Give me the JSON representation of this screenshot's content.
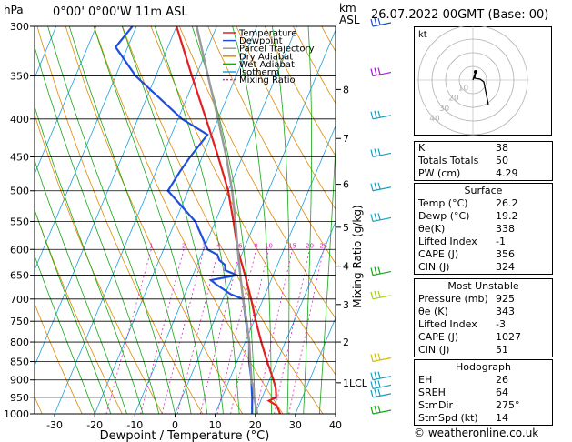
{
  "header": {
    "location": "0°00' 0°00'W 11m ASL",
    "datetime": "26.07.2022 00GMT (Base: 00)",
    "y_unit": "hPa",
    "km_label": "km",
    "asl_label": "ASL"
  },
  "chart_data": {
    "type": "line",
    "title": "",
    "xlabel": "Dewpoint / Temperature (°C)",
    "ylabel": "hPa",
    "right_axis_label": "Mixing Ratio (g/kg)",
    "xlim": [
      -35,
      40
    ],
    "ylim": [
      1000,
      300
    ],
    "log_pressure": true,
    "skew_per_log_pressure": 148,
    "x_ticks": [
      "-30",
      "-20",
      "-10",
      "0",
      "10",
      "20",
      "30",
      "40"
    ],
    "x_tick_values": [
      -30,
      -20,
      -10,
      0,
      10,
      20,
      30,
      40
    ],
    "pressure_levels": [
      300,
      350,
      400,
      450,
      500,
      550,
      600,
      650,
      700,
      750,
      800,
      850,
      900,
      950,
      1000
    ],
    "pressure_labels": [
      "300",
      "350",
      "400",
      "450",
      "500",
      "550",
      "600",
      "650",
      "700",
      "750",
      "800",
      "850",
      "900",
      "950",
      "1000"
    ],
    "km_ticks": [
      {
        "label": "8",
        "p": 365
      },
      {
        "label": "7",
        "p": 425
      },
      {
        "label": "6",
        "p": 490
      },
      {
        "label": "5",
        "p": 560
      },
      {
        "label": "4",
        "p": 632
      },
      {
        "label": "3",
        "p": 712
      },
      {
        "label": "2",
        "p": 800
      },
      {
        "label": "1LCL",
        "p": 908
      }
    ],
    "mixing_ratio_labels": [
      "1",
      "2",
      "3",
      "4",
      "6",
      "8",
      "10",
      "15",
      "20",
      "25"
    ],
    "mixing_ratio_values": [
      1,
      2,
      3,
      4,
      6,
      8,
      10,
      15,
      20,
      25
    ],
    "legend": {
      "placement": "top-left",
      "entries": [
        {
          "name": "Temperature",
          "color": "#e32020",
          "dash": false
        },
        {
          "name": "Dewpoint",
          "color": "#1f4fe0",
          "dash": false
        },
        {
          "name": "Parcel Trajectory",
          "color": "#9a9a9a",
          "dash": false
        },
        {
          "name": "Dry Adiabat",
          "color": "#e08a00",
          "dash": false
        },
        {
          "name": "Wet Adiabat",
          "color": "#16a816",
          "dash": false
        },
        {
          "name": "Isotherm",
          "color": "#1aa0e0",
          "dash": false
        },
        {
          "name": "Mixing Ratio",
          "color": "#e020c0",
          "dash": true
        }
      ]
    },
    "series": [
      {
        "name": "Temperature",
        "color": "#e32020",
        "points": [
          [
            1000,
            26.2
          ],
          [
            975,
            24.5
          ],
          [
            960,
            22
          ],
          [
            950,
            23.5
          ],
          [
            925,
            22.5
          ],
          [
            900,
            21
          ],
          [
            850,
            17.5
          ],
          [
            800,
            14
          ],
          [
            750,
            10.5
          ],
          [
            700,
            7
          ],
          [
            650,
            3
          ],
          [
            600,
            -1.5
          ],
          [
            550,
            -5.5
          ],
          [
            500,
            -10
          ],
          [
            450,
            -16
          ],
          [
            400,
            -23
          ],
          [
            350,
            -31
          ],
          [
            300,
            -40
          ]
        ]
      },
      {
        "name": "Dewpoint",
        "color": "#1f4fe0",
        "points": [
          [
            1000,
            19.2
          ],
          [
            950,
            17.5
          ],
          [
            925,
            16.5
          ],
          [
            900,
            15.5
          ],
          [
            850,
            13
          ],
          [
            800,
            11
          ],
          [
            750,
            8
          ],
          [
            700,
            5
          ],
          [
            690,
            1.5
          ],
          [
            670,
            -3
          ],
          [
            660,
            -5
          ],
          [
            650,
            1
          ],
          [
            640,
            -2.5
          ],
          [
            630,
            -3
          ],
          [
            620,
            -5
          ],
          [
            610,
            -6
          ],
          [
            600,
            -9
          ],
          [
            550,
            -15
          ],
          [
            500,
            -25
          ],
          [
            470,
            -24
          ],
          [
            450,
            -23
          ],
          [
            420,
            -21
          ],
          [
            400,
            -29
          ],
          [
            350,
            -45
          ],
          [
            320,
            -53
          ],
          [
            300,
            -51
          ]
        ]
      },
      {
        "name": "Parcel Trajectory",
        "color": "#9a9a9a",
        "points": [
          [
            1000,
            20.5
          ],
          [
            950,
            18
          ],
          [
            925,
            17
          ],
          [
            900,
            15.5
          ],
          [
            850,
            13.3
          ],
          [
            800,
            11
          ],
          [
            750,
            8.2
          ],
          [
            700,
            5
          ],
          [
            650,
            1.8
          ],
          [
            600,
            -1.5
          ],
          [
            550,
            -5
          ],
          [
            500,
            -9
          ],
          [
            450,
            -14
          ],
          [
            400,
            -20
          ],
          [
            350,
            -27
          ],
          [
            300,
            -35
          ]
        ]
      }
    ],
    "wind_barbs": [
      {
        "p": 1000,
        "color": "#16a816"
      },
      {
        "p": 950,
        "color": "#16a0c0"
      },
      {
        "p": 925,
        "color": "#16a0c0"
      },
      {
        "p": 900,
        "color": "#16a0c0"
      },
      {
        "p": 850,
        "color": "#d0c000"
      },
      {
        "p": 700,
        "color": "#a8d020"
      },
      {
        "p": 650,
        "color": "#16a816"
      },
      {
        "p": 550,
        "color": "#16a0c0"
      },
      {
        "p": 500,
        "color": "#16a0c0"
      },
      {
        "p": 450,
        "color": "#16a0c0"
      },
      {
        "p": 400,
        "color": "#16a0c0"
      },
      {
        "p": 350,
        "color": "#a020d0"
      },
      {
        "p": 300,
        "color": "#2050d0"
      }
    ]
  },
  "hodograph": {
    "unit": "kt",
    "ring_labels": [
      "10",
      "20",
      "30",
      "40"
    ]
  },
  "indices": {
    "top": [
      {
        "label": "K",
        "value": "38"
      },
      {
        "label": "Totals Totals",
        "value": "50"
      },
      {
        "label": "PW (cm)",
        "value": "4.29"
      }
    ],
    "surface": {
      "title": "Surface",
      "rows": [
        {
          "label": "Temp (°C)",
          "value": "26.2"
        },
        {
          "label": "Dewp (°C)",
          "value": "19.2"
        },
        {
          "label": "θe(K)",
          "value": "338"
        },
        {
          "label": "Lifted Index",
          "value": "-1"
        },
        {
          "label": "CAPE (J)",
          "value": "356"
        },
        {
          "label": "CIN (J)",
          "value": "324"
        }
      ]
    },
    "most_unstable": {
      "title": "Most Unstable",
      "rows": [
        {
          "label": "Pressure (mb)",
          "value": "925"
        },
        {
          "label": "θe (K)",
          "value": "343"
        },
        {
          "label": "Lifted Index",
          "value": "-3"
        },
        {
          "label": "CAPE (J)",
          "value": "1027"
        },
        {
          "label": "CIN (J)",
          "value": "51"
        }
      ]
    },
    "hodo_table": {
      "title": "Hodograph",
      "rows": [
        {
          "label": "EH",
          "value": "26"
        },
        {
          "label": "SREH",
          "value": "64"
        },
        {
          "label": "StmDir",
          "value": "275°"
        },
        {
          "label": "StmSpd (kt)",
          "value": "14"
        }
      ]
    }
  },
  "footer": "© weatheronline.co.uk"
}
